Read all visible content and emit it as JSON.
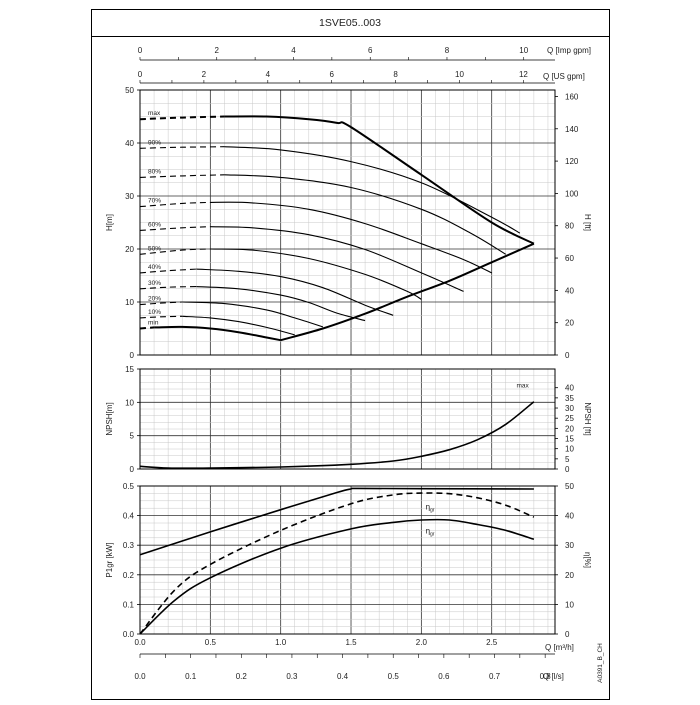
{
  "title": "1SVE05..003",
  "side_code": "A0391_B_CH",
  "chart_data": [
    {
      "type": "line",
      "panel": "head",
      "xlabel": "Q [m³/h]",
      "xlim": [
        0,
        2.95
      ],
      "ylabel_left": "H[m]",
      "ylim_left": [
        0,
        50
      ],
      "yticks_left": [
        0,
        10,
        20,
        30,
        40,
        50
      ],
      "ylabel_right": "H [ft]",
      "ylim_right": [
        0,
        164
      ],
      "yticks_right": [
        0,
        20,
        40,
        60,
        80,
        100,
        120,
        140,
        160
      ],
      "top_axis_1": {
        "label": "Q [Imp gpm]",
        "ticks": [
          0,
          2,
          4,
          6,
          8,
          10
        ]
      },
      "top_axis_2": {
        "label": "Q [US gpm]",
        "ticks": [
          0,
          2,
          4,
          6,
          8,
          10,
          12
        ]
      },
      "series": [
        {
          "name": "max",
          "dashed_until": 0.6,
          "x": [
            0,
            0.3,
            0.6,
            0.9,
            1.2,
            1.4,
            1.5,
            2.0,
            2.5,
            2.8
          ],
          "y": [
            44.5,
            44.8,
            45,
            45,
            44.5,
            43.8,
            43,
            34,
            25,
            21
          ]
        },
        {
          "name": "90%",
          "dashed_until": 0.6,
          "x": [
            0,
            0.3,
            0.6,
            1.0,
            1.5,
            2.0,
            2.5,
            2.7
          ],
          "y": [
            39,
            39.2,
            39.3,
            38.7,
            36.5,
            32.5,
            26,
            23
          ]
        },
        {
          "name": "80%",
          "dashed_until": 0.6,
          "x": [
            0,
            0.3,
            0.6,
            1.0,
            1.5,
            2.0,
            2.35,
            2.6
          ],
          "y": [
            33.5,
            33.8,
            34,
            33.5,
            31.6,
            27.5,
            23,
            19
          ]
        },
        {
          "name": "70%",
          "dashed_until": 0.5,
          "x": [
            0,
            0.3,
            0.5,
            0.8,
            1.2,
            1.6,
            2.0,
            2.3,
            2.5
          ],
          "y": [
            28,
            28.6,
            28.8,
            28.7,
            27.5,
            24.8,
            21,
            18,
            15.5
          ]
        },
        {
          "name": "60%",
          "dashed_until": 0.5,
          "x": [
            0,
            0.3,
            0.5,
            0.8,
            1.2,
            1.6,
            2.0,
            2.3
          ],
          "y": [
            23.5,
            24,
            24.2,
            24,
            22.7,
            19.9,
            15.5,
            12
          ]
        },
        {
          "name": "50%",
          "dashed_until": 0.5,
          "x": [
            0,
            0.3,
            0.5,
            0.8,
            1.2,
            1.6,
            1.9,
            2.0
          ],
          "y": [
            19,
            19.8,
            20,
            19.8,
            18.2,
            15.2,
            12,
            10.5
          ]
        },
        {
          "name": "40%",
          "dashed_until": 0.4,
          "x": [
            0,
            0.2,
            0.4,
            0.7,
            1.0,
            1.3,
            1.6,
            1.8
          ],
          "y": [
            15.5,
            15.9,
            16.2,
            15.8,
            14.8,
            12.7,
            9.4,
            7.5
          ]
        },
        {
          "name": "30%",
          "dashed_until": 0.4,
          "x": [
            0,
            0.2,
            0.4,
            0.7,
            1.0,
            1.2,
            1.4,
            1.6
          ],
          "y": [
            12.5,
            12.8,
            12.9,
            12.5,
            11.3,
            9.9,
            7.9,
            6.5
          ]
        },
        {
          "name": "20%",
          "dashed_until": 0.3,
          "x": [
            0,
            0.15,
            0.3,
            0.6,
            0.9,
            1.1,
            1.3
          ],
          "y": [
            9.5,
            9.8,
            10,
            9.7,
            8.5,
            7,
            5.3
          ]
        },
        {
          "name": "10%",
          "dashed_until": 0.3,
          "x": [
            0,
            0.15,
            0.3,
            0.5,
            0.7,
            0.9,
            1.1
          ],
          "y": [
            7,
            7.2,
            7.3,
            7,
            6.3,
            5.2,
            3.8
          ]
        },
        {
          "name": "min",
          "dashed_until": 0.1,
          "x": [
            0,
            0.1,
            0.3,
            0.5,
            0.7,
            0.9,
            1.0
          ],
          "y": [
            5,
            5.2,
            5.3,
            5,
            4.3,
            3.3,
            2.8
          ]
        },
        {
          "name": "",
          "x": [
            1.0,
            1.3,
            1.6,
            1.9,
            2.2,
            2.5,
            2.8
          ],
          "y": [
            2.8,
            5,
            7.8,
            11,
            14,
            17.5,
            21
          ]
        }
      ]
    },
    {
      "type": "line",
      "panel": "npsh",
      "ylabel_left": "NPSH[m]",
      "ylim_left": [
        0,
        15
      ],
      "yticks_left": [
        0,
        5,
        10,
        15
      ],
      "ylabel_right": "NPSH [ft]",
      "ylim_right": [
        0,
        49.2
      ],
      "yticks_right": [
        0,
        5,
        10,
        15,
        20,
        25,
        30,
        35,
        40
      ],
      "series": [
        {
          "name": "max",
          "x": [
            0,
            0.2,
            0.5,
            1.0,
            1.5,
            1.8,
            2.0,
            2.2,
            2.4,
            2.6,
            2.8
          ],
          "y": [
            0.4,
            0.15,
            0.15,
            0.3,
            0.7,
            1.2,
            1.9,
            2.9,
            4.4,
            6.7,
            10.1
          ]
        }
      ]
    },
    {
      "type": "line",
      "panel": "power-efficiency",
      "ylabel_left": "P1gr [kW]",
      "ylim_left": [
        0,
        0.5
      ],
      "yticks_left": [
        0.0,
        0.1,
        0.2,
        0.3,
        0.4,
        0.5
      ],
      "ylabel_right": "η[%]",
      "ylim_right": [
        0,
        50
      ],
      "yticks_right": [
        0,
        10,
        20,
        30,
        40,
        50
      ],
      "xticks": [
        0.0,
        0.5,
        1.0,
        1.5,
        2.0,
        2.5
      ],
      "xlabel": "Q [m³/h]",
      "bottom_axis": {
        "label": "Q [l/s]",
        "ticks": [
          0.0,
          0.1,
          0.2,
          0.3,
          0.4,
          0.5,
          0.6,
          0.7,
          0.8
        ]
      },
      "series": [
        {
          "name": "",
          "axis": "left",
          "x": [
            0,
            0.5,
            1.0,
            1.4,
            1.5,
            1.55,
            2.0,
            2.8
          ],
          "y": [
            0.268,
            0.345,
            0.42,
            0.478,
            0.49,
            0.492,
            0.491,
            0.49
          ]
        },
        {
          "name": "ηgr",
          "axis": "right",
          "dashed": true,
          "x": [
            0,
            0.25,
            0.5,
            1.0,
            1.5,
            1.8,
            2.0,
            2.2,
            2.4,
            2.6,
            2.8
          ],
          "y": [
            0,
            15,
            23.5,
            35,
            44,
            47,
            47.6,
            47.4,
            46,
            43.5,
            39.5
          ]
        },
        {
          "name": "ηgr",
          "axis": "right",
          "x": [
            0,
            0.25,
            0.5,
            1.0,
            1.5,
            1.8,
            2.0,
            2.2,
            2.4,
            2.6,
            2.8
          ],
          "y": [
            0,
            11.5,
            19,
            29,
            35.5,
            37.7,
            38.5,
            38.5,
            37,
            35,
            32
          ]
        }
      ]
    }
  ]
}
